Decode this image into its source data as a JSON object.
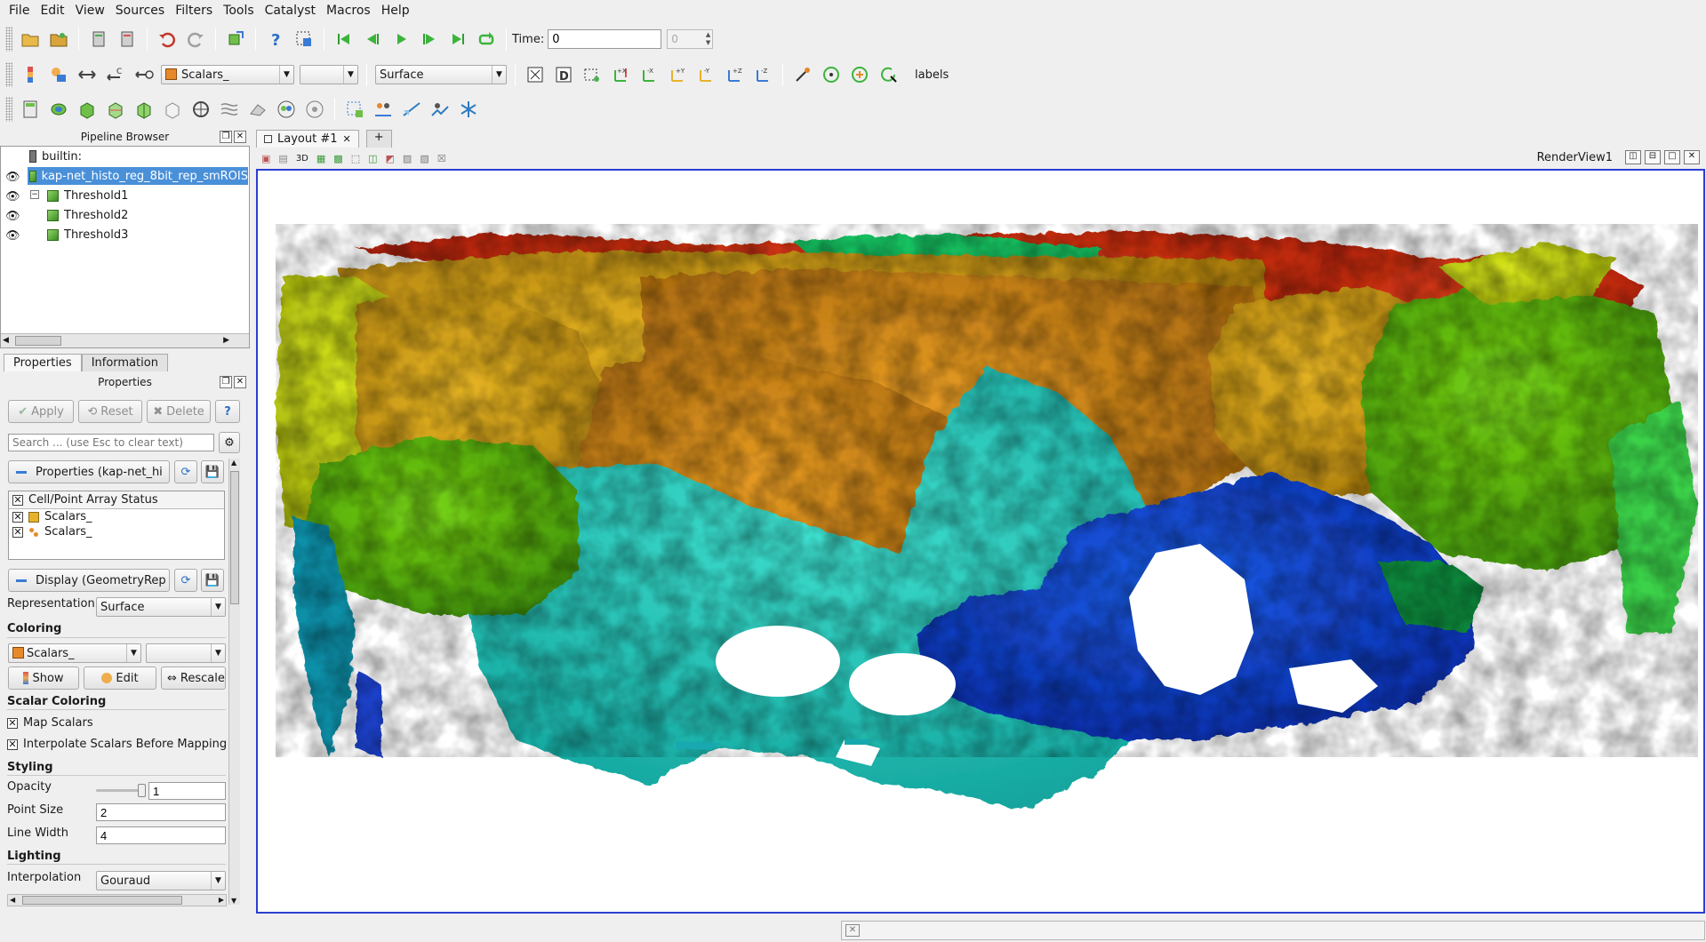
{
  "menu": [
    "File",
    "Edit",
    "View",
    "Sources",
    "Filters",
    "Tools",
    "Catalyst",
    "Macros",
    "Help"
  ],
  "toolbar1": {
    "time_label": "Time:",
    "time_value": "0",
    "time_index": "0"
  },
  "toolbar2": {
    "array_combo": "Scalars_",
    "component_combo": "",
    "representation_combo": "Surface",
    "labels_text": "labels"
  },
  "pipeline": {
    "title": "Pipeline Browser",
    "items": [
      {
        "label": "builtin:"
      },
      {
        "label": "kap-net_histo_reg_8bit_rep_smROIS"
      },
      {
        "label": "Threshold1"
      },
      {
        "label": "Threshold2"
      },
      {
        "label": "Threshold3"
      }
    ]
  },
  "properties": {
    "tabs": [
      "Properties",
      "Information"
    ],
    "title": "Properties",
    "apply_label": "Apply",
    "reset_label": "Reset",
    "delete_label": "Delete",
    "help_label": "?",
    "search_placeholder": "Search ... (use Esc to clear text)",
    "section_properties": "Properties (kap-net_hi",
    "array_status_header": "Cell/Point Array Status",
    "arrays": [
      "Scalars_",
      "Scalars_"
    ],
    "section_display": "Display (GeometryRep",
    "representation_label": "Representation",
    "representation_value": "Surface",
    "coloring_head": "Coloring",
    "coloring_value": "Scalars_",
    "show_label": "Show",
    "edit_label": "Edit",
    "rescale_label": "Rescale",
    "scalar_coloring_head": "Scalar Coloring",
    "map_scalars_label": "Map Scalars",
    "interpolate_label": "Interpolate Scalars Before Mapping",
    "styling_head": "Styling",
    "opacity_label": "Opacity",
    "opacity_value": "1",
    "point_size_label": "Point Size",
    "point_size_value": "2",
    "line_width_label": "Line Width",
    "line_width_value": "4",
    "lighting_head": "Lighting",
    "interpolation_label": "Interpolation",
    "interpolation_value": "Gouraud"
  },
  "layout": {
    "tab_label": "Layout #1",
    "add_tab": "+",
    "view_label": "RenderView1",
    "threed_label": "3D"
  }
}
